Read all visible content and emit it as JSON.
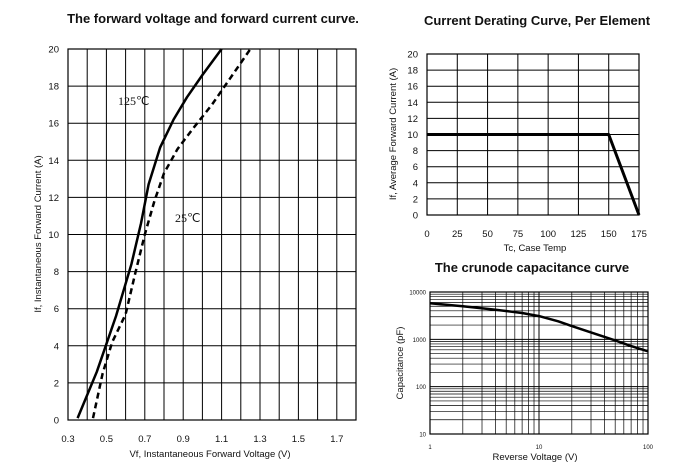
{
  "chart_data": [
    {
      "type": "line",
      "title": "The forward voltage and forward current curve.",
      "xlabel": "Vf, Instantaneous Forward Voltage (V)",
      "ylabel": "If, Instantaneous Forward Current (A)",
      "xlim": [
        0.3,
        1.8
      ],
      "ylim": [
        0,
        20
      ],
      "x_ticks": [
        "0.3",
        "0.5",
        "0.7",
        "0.9",
        "1.1",
        "1.3",
        "1.5",
        "1.7"
      ],
      "y_ticks": [
        "0",
        "2",
        "4",
        "6",
        "8",
        "10",
        "12",
        "14",
        "16",
        "18",
        "20"
      ],
      "grid": true,
      "series": [
        {
          "name": "125℃",
          "style": "solid",
          "x": [
            0.35,
            0.45,
            0.55,
            0.63,
            0.68,
            0.72,
            0.78,
            0.85,
            0.92,
            1.0,
            1.1
          ],
          "y": [
            0.1,
            2.6,
            5.6,
            8.4,
            10.6,
            12.7,
            14.7,
            16.2,
            17.4,
            18.6,
            20.0
          ]
        },
        {
          "name": "25℃",
          "style": "dashed",
          "x": [
            0.43,
            0.48,
            0.53,
            0.6,
            0.65,
            0.7,
            0.75,
            0.8,
            0.87,
            0.95,
            1.05,
            1.15,
            1.25
          ],
          "y": [
            0.1,
            2.5,
            4.2,
            5.7,
            7.9,
            10.0,
            11.8,
            13.3,
            14.6,
            15.7,
            17.0,
            18.5,
            20.0
          ]
        }
      ]
    },
    {
      "type": "line",
      "title": "Current Derating Curve, Per Element",
      "xlabel": "Tc, Case Temp",
      "ylabel": "If, Average Forward Current (A)",
      "xlim": [
        0,
        175
      ],
      "ylim": [
        0,
        20
      ],
      "x_ticks": [
        "0",
        "25",
        "50",
        "75",
        "100",
        "125",
        "150",
        "175"
      ],
      "y_ticks": [
        "0",
        "2",
        "4",
        "6",
        "8",
        "10",
        "12",
        "14",
        "16",
        "18",
        "20"
      ],
      "grid": true,
      "series": [
        {
          "x": [
            0,
            150,
            175
          ],
          "y": [
            10,
            10,
            0
          ]
        }
      ]
    },
    {
      "type": "line",
      "title": "The crunode capacitance curve",
      "xlabel": "Reverse Voltage (V)",
      "ylabel": "Capacitance (pF)",
      "xscale": "log",
      "yscale": "log",
      "xlim": [
        1,
        100
      ],
      "ylim": [
        10,
        10000
      ],
      "x_ticks": [
        "1",
        "10",
        "100"
      ],
      "y_ticks": [
        "10",
        "100",
        "1000",
        "10000"
      ],
      "grid": true,
      "series": [
        {
          "x": [
            1,
            2,
            4,
            7,
            10,
            15,
            20,
            30,
            50,
            70,
            100
          ],
          "y": [
            5800,
            5000,
            4200,
            3600,
            3100,
            2400,
            1900,
            1400,
            950,
            720,
            560
          ]
        }
      ]
    }
  ]
}
